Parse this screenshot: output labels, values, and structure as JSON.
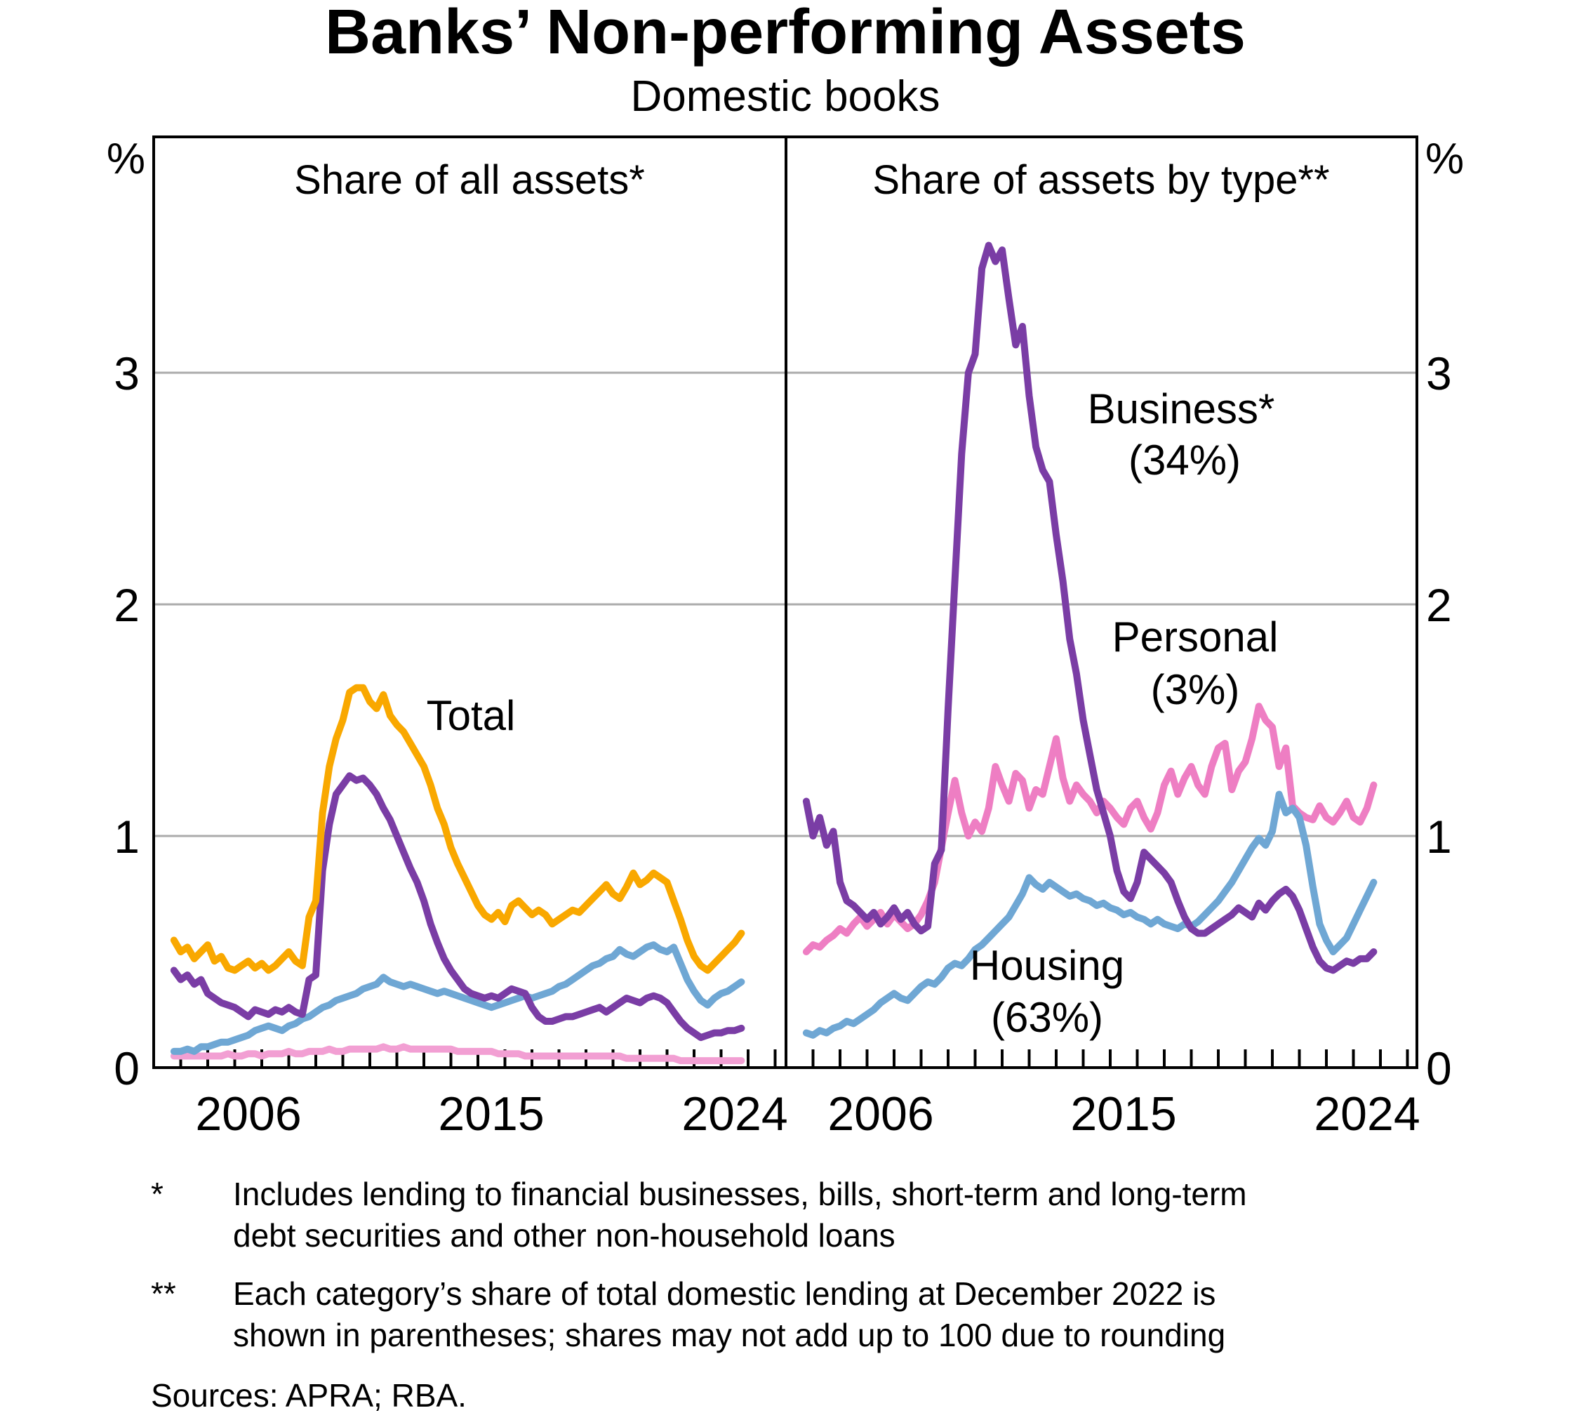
{
  "title": "Banks’ Non-performing Assets",
  "subtitle": "Domestic books",
  "panels": [
    {
      "title": "Share of all assets*"
    },
    {
      "title": "Share of assets by type**"
    }
  ],
  "y_axis": {
    "unit": "%",
    "ticks": [
      "0",
      "1",
      "2",
      "3"
    ]
  },
  "x_axis": {
    "labels": [
      "2006",
      "2015",
      "2024"
    ]
  },
  "series_labels": {
    "total": "Total",
    "business": "Business*",
    "business_share": "(34%)",
    "personal": "Personal",
    "personal_share": "(3%)",
    "housing": "Housing",
    "housing_share": "(63%)"
  },
  "colors": {
    "total": "#F9A800",
    "business": "#7A3DA5",
    "housing": "#6FA7D4",
    "personal": "#EE7EC3",
    "personal_left": "#F29FD3",
    "gridline": "#ABABAB",
    "axis": "#000000"
  },
  "footnotes": [
    {
      "marker": "*",
      "lines": [
        "Includes lending to financial businesses, bills, short-term and long-term",
        "debt securities and other non-household loans"
      ]
    },
    {
      "marker": "**",
      "lines": [
        "Each category’s share of total domestic lending at December 2022 is",
        "shown in parentheses; shares may not add up to 100 due to rounding"
      ]
    }
  ],
  "sources": "Sources: APRA; RBA.",
  "chart_data": [
    {
      "type": "line",
      "title": "Share of all assets*",
      "ylabel": "%",
      "ylim": [
        0,
        4
      ],
      "gridlines": [
        1,
        2,
        3
      ],
      "grid": true,
      "legend_position": "inline-labels",
      "x_start": 2003.75,
      "x_step": 0.25,
      "x_end": 2024.75,
      "x_labeled_years": [
        2006,
        2015,
        2024
      ],
      "series": [
        {
          "name": "Personal",
          "color": "#F29FD3",
          "values": [
            0.05,
            0.05,
            0.05,
            0.05,
            0.05,
            0.05,
            0.05,
            0.05,
            0.06,
            0.05,
            0.05,
            0.06,
            0.06,
            0.05,
            0.06,
            0.06,
            0.06,
            0.07,
            0.06,
            0.06,
            0.07,
            0.07,
            0.07,
            0.08,
            0.07,
            0.07,
            0.08,
            0.08,
            0.08,
            0.08,
            0.08,
            0.09,
            0.08,
            0.08,
            0.09,
            0.08,
            0.08,
            0.08,
            0.08,
            0.08,
            0.08,
            0.08,
            0.07,
            0.07,
            0.07,
            0.07,
            0.07,
            0.07,
            0.06,
            0.06,
            0.06,
            0.06,
            0.05,
            0.05,
            0.05,
            0.05,
            0.05,
            0.05,
            0.05,
            0.05,
            0.05,
            0.05,
            0.05,
            0.05,
            0.05,
            0.05,
            0.05,
            0.04,
            0.04,
            0.04,
            0.04,
            0.04,
            0.04,
            0.04,
            0.04,
            0.03,
            0.03,
            0.03,
            0.03,
            0.03,
            0.03,
            0.03,
            0.03,
            0.03,
            0.03
          ]
        },
        {
          "name": "Housing",
          "color": "#6FA7D4",
          "values": [
            0.07,
            0.07,
            0.08,
            0.07,
            0.09,
            0.09,
            0.1,
            0.11,
            0.11,
            0.12,
            0.13,
            0.14,
            0.16,
            0.17,
            0.18,
            0.17,
            0.16,
            0.18,
            0.19,
            0.21,
            0.22,
            0.24,
            0.26,
            0.27,
            0.29,
            0.3,
            0.31,
            0.32,
            0.34,
            0.35,
            0.36,
            0.39,
            0.37,
            0.36,
            0.35,
            0.36,
            0.35,
            0.34,
            0.33,
            0.32,
            0.33,
            0.32,
            0.31,
            0.3,
            0.29,
            0.28,
            0.27,
            0.26,
            0.27,
            0.28,
            0.29,
            0.3,
            0.31,
            0.3,
            0.31,
            0.32,
            0.33,
            0.35,
            0.36,
            0.38,
            0.4,
            0.42,
            0.44,
            0.45,
            0.47,
            0.48,
            0.51,
            0.49,
            0.48,
            0.5,
            0.52,
            0.53,
            0.51,
            0.5,
            0.52,
            0.45,
            0.38,
            0.33,
            0.29,
            0.27,
            0.3,
            0.32,
            0.33,
            0.35,
            0.37
          ]
        },
        {
          "name": "Business",
          "color": "#7A3DA5",
          "values": [
            0.42,
            0.38,
            0.4,
            0.36,
            0.38,
            0.32,
            0.3,
            0.28,
            0.27,
            0.26,
            0.24,
            0.22,
            0.25,
            0.24,
            0.23,
            0.25,
            0.24,
            0.26,
            0.24,
            0.23,
            0.38,
            0.4,
            0.85,
            1.05,
            1.18,
            1.22,
            1.26,
            1.24,
            1.25,
            1.22,
            1.18,
            1.12,
            1.07,
            1.0,
            0.93,
            0.86,
            0.8,
            0.72,
            0.62,
            0.54,
            0.47,
            0.42,
            0.38,
            0.34,
            0.32,
            0.31,
            0.3,
            0.31,
            0.3,
            0.32,
            0.34,
            0.33,
            0.32,
            0.26,
            0.22,
            0.2,
            0.2,
            0.21,
            0.22,
            0.22,
            0.23,
            0.24,
            0.25,
            0.26,
            0.24,
            0.26,
            0.28,
            0.3,
            0.29,
            0.28,
            0.3,
            0.31,
            0.3,
            0.28,
            0.24,
            0.2,
            0.17,
            0.15,
            0.13,
            0.14,
            0.15,
            0.15,
            0.16,
            0.16,
            0.17
          ]
        },
        {
          "name": "Total",
          "color": "#F9A800",
          "values": [
            0.55,
            0.5,
            0.52,
            0.47,
            0.5,
            0.53,
            0.46,
            0.48,
            0.43,
            0.42,
            0.44,
            0.46,
            0.43,
            0.45,
            0.42,
            0.44,
            0.47,
            0.5,
            0.46,
            0.44,
            0.65,
            0.72,
            1.1,
            1.3,
            1.42,
            1.5,
            1.62,
            1.64,
            1.64,
            1.58,
            1.55,
            1.61,
            1.52,
            1.48,
            1.45,
            1.4,
            1.35,
            1.3,
            1.22,
            1.12,
            1.05,
            0.95,
            0.88,
            0.82,
            0.76,
            0.7,
            0.66,
            0.64,
            0.67,
            0.63,
            0.7,
            0.72,
            0.69,
            0.66,
            0.68,
            0.66,
            0.62,
            0.64,
            0.66,
            0.68,
            0.67,
            0.7,
            0.73,
            0.76,
            0.79,
            0.75,
            0.73,
            0.78,
            0.84,
            0.79,
            0.81,
            0.84,
            0.82,
            0.8,
            0.72,
            0.64,
            0.55,
            0.48,
            0.44,
            0.42,
            0.45,
            0.48,
            0.51,
            0.54,
            0.58
          ]
        }
      ]
    },
    {
      "type": "line",
      "title": "Share of assets by type**",
      "ylabel": "%",
      "ylim": [
        0,
        4
      ],
      "gridlines": [
        1,
        2,
        3
      ],
      "grid": true,
      "legend_position": "inline-labels",
      "x_start": 2003.75,
      "x_step": 0.25,
      "x_end": 2024.75,
      "x_labeled_years": [
        2006,
        2015,
        2024
      ],
      "series": [
        {
          "name": "Personal",
          "color": "#EE7EC3",
          "values": [
            0.5,
            0.53,
            0.52,
            0.55,
            0.57,
            0.6,
            0.58,
            0.62,
            0.65,
            0.61,
            0.64,
            0.67,
            0.62,
            0.66,
            0.63,
            0.6,
            0.62,
            0.66,
            0.72,
            0.8,
            0.95,
            1.1,
            1.24,
            1.1,
            1.0,
            1.06,
            1.02,
            1.12,
            1.3,
            1.22,
            1.15,
            1.27,
            1.24,
            1.12,
            1.2,
            1.18,
            1.3,
            1.42,
            1.25,
            1.15,
            1.22,
            1.18,
            1.15,
            1.1,
            1.15,
            1.12,
            1.08,
            1.05,
            1.12,
            1.15,
            1.08,
            1.03,
            1.1,
            1.22,
            1.28,
            1.18,
            1.25,
            1.3,
            1.22,
            1.18,
            1.3,
            1.38,
            1.4,
            1.2,
            1.28,
            1.32,
            1.42,
            1.56,
            1.5,
            1.47,
            1.3,
            1.38,
            1.13,
            1.1,
            1.08,
            1.07,
            1.13,
            1.08,
            1.06,
            1.1,
            1.15,
            1.08,
            1.06,
            1.12,
            1.22
          ]
        },
        {
          "name": "Housing",
          "color": "#6FA7D4",
          "values": [
            0.15,
            0.14,
            0.16,
            0.15,
            0.17,
            0.18,
            0.2,
            0.19,
            0.21,
            0.23,
            0.25,
            0.28,
            0.3,
            0.32,
            0.3,
            0.29,
            0.32,
            0.35,
            0.37,
            0.36,
            0.39,
            0.43,
            0.45,
            0.44,
            0.47,
            0.51,
            0.53,
            0.56,
            0.59,
            0.62,
            0.65,
            0.7,
            0.75,
            0.82,
            0.79,
            0.77,
            0.8,
            0.78,
            0.76,
            0.74,
            0.75,
            0.73,
            0.72,
            0.7,
            0.71,
            0.69,
            0.68,
            0.66,
            0.67,
            0.65,
            0.64,
            0.62,
            0.64,
            0.62,
            0.61,
            0.6,
            0.62,
            0.61,
            0.63,
            0.66,
            0.69,
            0.72,
            0.76,
            0.8,
            0.85,
            0.9,
            0.95,
            0.99,
            0.96,
            1.02,
            1.18,
            1.1,
            1.12,
            1.08,
            0.96,
            0.78,
            0.62,
            0.55,
            0.5,
            0.53,
            0.56,
            0.62,
            0.68,
            0.74,
            0.8
          ]
        },
        {
          "name": "Business",
          "color": "#7A3DA5",
          "values": [
            1.15,
            1.0,
            1.08,
            0.96,
            1.02,
            0.8,
            0.72,
            0.7,
            0.67,
            0.64,
            0.67,
            0.62,
            0.65,
            0.69,
            0.64,
            0.67,
            0.62,
            0.59,
            0.61,
            0.88,
            0.94,
            1.55,
            2.1,
            2.65,
            3.0,
            3.08,
            3.45,
            3.55,
            3.48,
            3.53,
            3.32,
            3.12,
            3.2,
            2.9,
            2.68,
            2.58,
            2.53,
            2.3,
            2.1,
            1.85,
            1.7,
            1.5,
            1.35,
            1.2,
            1.1,
            1.0,
            0.85,
            0.76,
            0.73,
            0.8,
            0.93,
            0.9,
            0.87,
            0.84,
            0.8,
            0.72,
            0.65,
            0.6,
            0.58,
            0.58,
            0.6,
            0.62,
            0.64,
            0.66,
            0.69,
            0.67,
            0.65,
            0.71,
            0.68,
            0.72,
            0.75,
            0.77,
            0.74,
            0.68,
            0.6,
            0.52,
            0.46,
            0.43,
            0.42,
            0.44,
            0.46,
            0.45,
            0.47,
            0.47,
            0.5
          ]
        }
      ]
    }
  ]
}
